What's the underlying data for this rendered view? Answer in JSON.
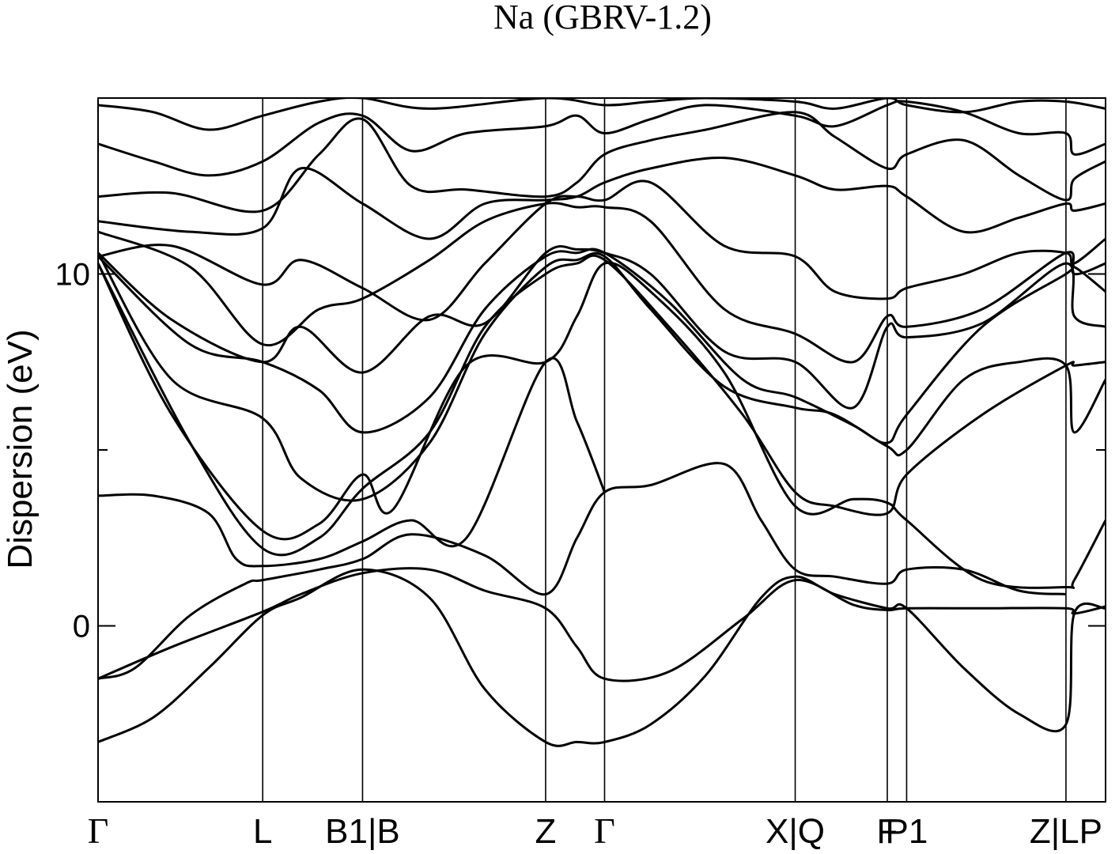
{
  "chart_data": {
    "type": "line",
    "title": "Na (GBRV-1.2)",
    "xlabel": "",
    "ylabel": "Dispersion (eV)",
    "ylim": [
      -5,
      15
    ],
    "yticks": [
      0,
      10
    ],
    "yminor_ticks": [
      5
    ],
    "xlim": [
      0,
      5.47
    ],
    "grid": false,
    "legend": "none",
    "line_color": "#000000",
    "high_symmetry_points": [
      {
        "label": "Γ",
        "x": 0.0
      },
      {
        "label": "L",
        "x": 0.894
      },
      {
        "label": "B1|B",
        "x": 1.436
      },
      {
        "label": "Z",
        "x": 2.43
      },
      {
        "label": "Γ",
        "x": 2.75
      },
      {
        "label": "X|Q",
        "x": 3.785
      },
      {
        "label": "F",
        "x": 4.285
      },
      {
        "label": "P1",
        "x": 4.39
      },
      {
        "label": "Z|LP",
        "x": 5.255
      },
      {
        "label": "",
        "x": 5.47
      }
    ],
    "series": [
      {
        "x": [
          0,
          0.3,
          0.6,
          0.894,
          1.1,
          1.436,
          1.8,
          2.1,
          2.43,
          2.6,
          2.75,
          3.0,
          3.3,
          3.6,
          3.785,
          4.0,
          4.285,
          4.39,
          4.7,
          5.0,
          5.255,
          5.3,
          5.47
        ],
        "y": [
          -3.3,
          -2.6,
          -1.2,
          0.3,
          0.8,
          1.6,
          0.8,
          -1.8,
          -3.3,
          -3.3,
          -3.3,
          -2.8,
          -1.4,
          0.8,
          1.4,
          0.9,
          0.5,
          0.5,
          -1.2,
          -2.5,
          -2.8,
          0.35,
          0.5
        ]
      },
      {
        "x": [
          0,
          0.4,
          0.894,
          1.1,
          1.436,
          1.8,
          2.1,
          2.43,
          2.6,
          2.75,
          3.1,
          3.5,
          3.785,
          4.1,
          4.285,
          4.39,
          4.8,
          5.255,
          5.3,
          5.47
        ],
        "y": [
          -1.5,
          -0.6,
          0.4,
          0.9,
          1.5,
          1.6,
          1.0,
          0.5,
          -0.6,
          -1.5,
          -1.3,
          0.2,
          1.3,
          0.6,
          0.45,
          0.5,
          0.5,
          0.5,
          0.35,
          0.55
        ]
      },
      {
        "x": [
          0,
          0.2,
          0.5,
          0.8,
          0.894,
          1.2,
          1.436,
          1.7,
          2.1,
          2.43,
          2.6,
          2.75,
          3.0,
          3.4,
          3.6,
          3.785,
          4.0,
          4.285,
          4.39,
          4.7,
          5.0,
          5.255
        ],
        "y": [
          -1.5,
          -1.2,
          0.3,
          1.2,
          1.3,
          1.6,
          1.9,
          2.6,
          2.0,
          0.9,
          2.5,
          3.8,
          4.0,
          4.6,
          3.0,
          1.6,
          1.4,
          1.2,
          1.6,
          1.6,
          1.0,
          0.9
        ]
      },
      {
        "x": [
          0,
          0.3,
          0.6,
          0.75,
          0.894,
          1.2,
          1.436,
          1.7,
          2.0,
          2.43,
          2.6,
          2.75
        ],
        "y": [
          3.7,
          3.7,
          3.2,
          1.9,
          1.7,
          1.9,
          2.4,
          3.0,
          2.5,
          7.5,
          5.8,
          3.8
        ]
      },
      {
        "x": [
          0,
          0.4,
          0.894,
          1.2,
          1.436,
          1.6,
          2.0,
          2.43,
          2.6,
          2.75,
          3.0,
          3.4,
          3.785,
          4.1,
          4.285,
          4.39,
          4.8,
          5.255,
          5.3,
          5.47
        ],
        "y": [
          10.3,
          6.0,
          2.7,
          2.9,
          4.3,
          3.3,
          7.4,
          7.5,
          8.8,
          10.3,
          9.5,
          7.2,
          3.4,
          3.6,
          3.5,
          3.0,
          1.3,
          1.1,
          1.3,
          3.0
        ]
      },
      {
        "x": [
          0,
          0.5,
          0.894,
          1.2,
          1.436,
          1.8,
          2.1,
          2.43,
          2.6,
          2.75,
          3.1,
          3.5,
          3.785,
          4.0,
          4.285,
          4.39,
          4.8,
          5.255,
          5.3,
          5.47
        ],
        "y": [
          10.3,
          5.2,
          2.2,
          2.5,
          3.9,
          5.5,
          8.5,
          10.0,
          10.3,
          10.4,
          8.5,
          6.0,
          3.8,
          3.4,
          3.2,
          4.3,
          6.0,
          7.4,
          7.4,
          7.5
        ]
      },
      {
        "x": [
          0,
          0.4,
          0.894,
          1.1,
          1.436,
          1.8,
          2.1,
          2.43,
          2.6,
          2.75,
          3.0,
          3.4,
          3.785,
          4.0,
          4.285,
          4.39,
          4.7,
          5.0,
          5.255,
          5.3,
          5.47
        ],
        "y": [
          10.6,
          7.0,
          5.9,
          4.2,
          3.6,
          5.2,
          8.3,
          10.2,
          10.4,
          10.5,
          9.0,
          6.8,
          6.2,
          6.0,
          5.1,
          5.0,
          7.0,
          7.5,
          7.4,
          5.5,
          7.0
        ]
      },
      {
        "x": [
          0,
          0.5,
          0.894,
          1.2,
          1.436,
          1.8,
          2.1,
          2.43,
          2.6,
          2.75,
          3.1,
          3.5,
          3.785,
          4.1,
          4.285,
          4.39,
          4.8,
          5.255,
          5.3,
          5.47
        ],
        "y": [
          10.5,
          8.0,
          7.5,
          6.7,
          5.5,
          6.5,
          9.0,
          10.5,
          10.6,
          10.6,
          9.2,
          7.0,
          6.5,
          5.7,
          5.2,
          6.0,
          8.5,
          10.0,
          10.2,
          9.5
        ]
      },
      {
        "x": [
          0,
          0.4,
          0.894,
          1.1,
          1.436,
          1.8,
          2.1,
          2.43,
          2.6,
          2.75,
          3.0,
          3.4,
          3.785,
          4.1,
          4.285,
          4.39,
          4.8,
          5.255,
          5.3,
          5.47
        ],
        "y": [
          10.6,
          8.7,
          7.5,
          8.5,
          7.2,
          8.8,
          8.6,
          10.6,
          10.7,
          10.6,
          10.0,
          7.8,
          7.5,
          6.2,
          8.5,
          8.2,
          8.6,
          10.3,
          8.8,
          8.5
        ]
      },
      {
        "x": [
          0,
          0.5,
          0.894,
          1.2,
          1.436,
          1.8,
          2.1,
          2.43,
          2.6,
          2.75,
          3.0,
          3.4,
          3.785,
          4.1,
          4.285,
          4.39,
          4.8,
          5.255,
          5.3,
          5.47
        ],
        "y": [
          11.2,
          10.2,
          8.0,
          9.0,
          9.3,
          10.4,
          11.5,
          12.0,
          11.9,
          11.9,
          11.5,
          9.0,
          8.3,
          7.5,
          8.8,
          8.5,
          9.0,
          10.6,
          10.0,
          10.3
        ]
      },
      {
        "x": [
          0,
          0.4,
          0.894,
          1.1,
          1.436,
          1.8,
          2.1,
          2.43,
          2.6,
          2.75,
          3.0,
          3.4,
          3.785,
          4.0,
          4.285,
          4.39,
          4.7,
          5.0,
          5.255,
          5.3,
          5.47
        ],
        "y": [
          10.5,
          10.8,
          9.7,
          10.4,
          9.6,
          8.7,
          10.3,
          12.0,
          12.2,
          12.1,
          12.6,
          10.8,
          10.5,
          9.5,
          9.3,
          9.6,
          10.0,
          10.6,
          10.6,
          10.3,
          11.0
        ]
      },
      {
        "x": [
          0,
          0.5,
          0.894,
          1.1,
          1.436,
          1.8,
          2.1,
          2.43,
          2.6,
          2.75,
          3.0,
          3.4,
          3.785,
          4.0,
          4.285,
          4.39,
          4.7,
          5.0,
          5.255,
          5.3,
          5.47
        ],
        "y": [
          11.5,
          11.2,
          11.3,
          13.0,
          12.0,
          11.0,
          12.0,
          12.1,
          12.2,
          12.6,
          13.0,
          13.3,
          12.8,
          12.4,
          12.5,
          12.2,
          11.2,
          11.6,
          12.0,
          11.8,
          12.0
        ]
      },
      {
        "x": [
          0,
          0.4,
          0.894,
          1.2,
          1.436,
          1.7,
          2.0,
          2.43,
          2.6,
          2.75,
          3.0,
          3.3,
          3.785,
          4.0,
          4.285,
          4.39,
          4.7,
          5.0,
          5.255,
          5.3,
          5.47
        ],
        "y": [
          12.2,
          12.3,
          11.8,
          13.4,
          14.4,
          12.5,
          12.4,
          12.2,
          12.6,
          13.4,
          13.8,
          14.1,
          14.6,
          13.9,
          13.0,
          13.4,
          13.8,
          12.8,
          12.1,
          12.7,
          13.2
        ]
      },
      {
        "x": [
          0,
          0.3,
          0.6,
          0.894,
          1.2,
          1.436,
          1.7,
          2.0,
          2.43,
          2.6,
          2.75,
          3.0,
          3.3,
          3.785,
          4.0,
          4.285,
          4.39,
          4.7,
          5.0,
          5.255,
          5.3,
          5.47
        ],
        "y": [
          13.7,
          13.2,
          12.8,
          13.2,
          14.3,
          14.5,
          13.5,
          14.0,
          14.2,
          14.5,
          14.0,
          14.4,
          14.8,
          14.5,
          14.2,
          14.8,
          14.9,
          14.6,
          14.0,
          14.0,
          13.4,
          13.7
        ]
      },
      {
        "x": [
          0,
          0.3,
          0.6,
          0.894,
          1.2,
          1.436,
          1.8,
          2.43,
          2.75,
          3.0,
          3.3,
          3.785,
          4.0,
          4.285,
          4.39,
          4.7,
          5.0,
          5.255,
          5.47
        ],
        "y": [
          14.8,
          14.6,
          14.1,
          14.5,
          14.9,
          15.0,
          14.7,
          15.0,
          14.8,
          14.9,
          15.0,
          14.9,
          14.7,
          15.0,
          14.8,
          14.6,
          14.9,
          14.9,
          14.7
        ]
      }
    ]
  }
}
